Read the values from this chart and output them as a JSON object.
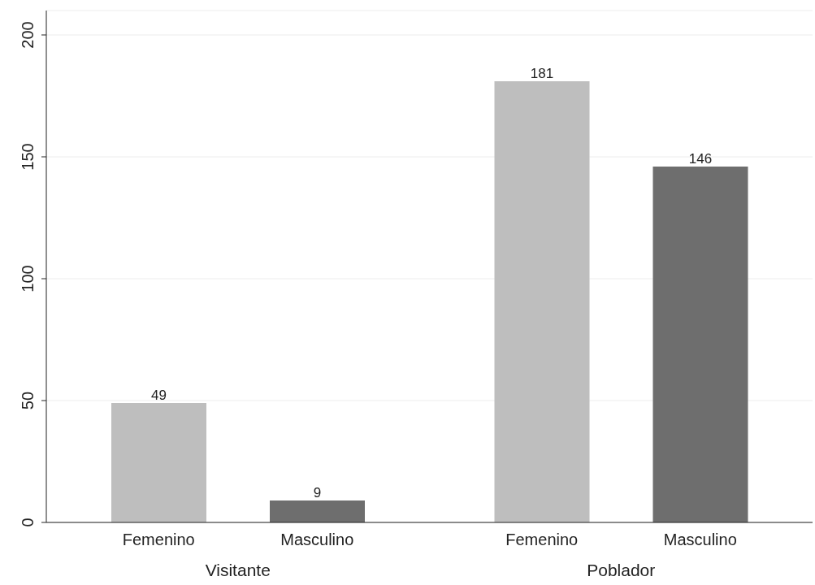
{
  "chart_data": {
    "type": "bar",
    "categories": [
      "Visitante",
      "Poblador"
    ],
    "series": [
      {
        "name": "Femenino",
        "color": "#bebebe",
        "values": [
          49,
          181
        ]
      },
      {
        "name": "Masculino",
        "color": "#6e6e6e",
        "values": [
          9,
          146
        ]
      }
    ],
    "ylim": [
      0,
      210
    ],
    "yticks": [
      0,
      50,
      100,
      150,
      200
    ],
    "grid": "y",
    "data_labels": true
  }
}
